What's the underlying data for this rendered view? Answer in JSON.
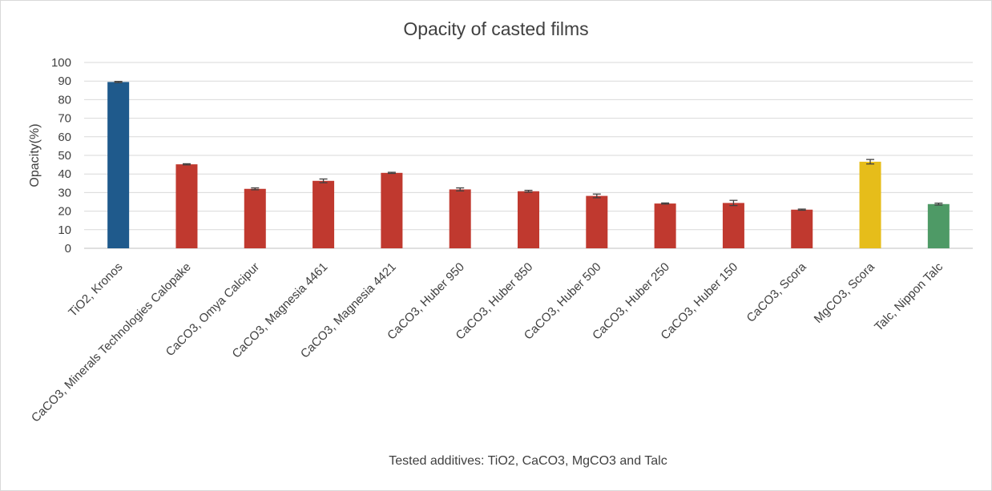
{
  "chart_data": {
    "type": "bar",
    "title": "Opacity of casted films",
    "xlabel": "Tested additives: TiO2, CaCO3, MgCO3 and Talc",
    "ylabel": "Opacity(%)",
    "ylim": [
      0,
      100
    ],
    "yticks": [
      0,
      10,
      20,
      30,
      40,
      50,
      60,
      70,
      80,
      90,
      100
    ],
    "grid": true,
    "categories": [
      "TiO2, Kronos",
      "CaCO3, Minerals Technologies Calopake",
      "CaCO3, Omya Calcipur",
      "CaCO3, Magnesia 4461",
      "CaCO3, Magnesia 4421",
      "CaCO3, Huber 950",
      "CaCO3, Huber 850",
      "CaCO3, Huber 500",
      "CaCO3, Huber 250",
      "CaCO3, Huber 150",
      "CaCO3, Scora",
      "MgCO3, Scora",
      "Talc, Nippon Talc"
    ],
    "values": [
      89.5,
      45.2,
      32.0,
      36.3,
      40.6,
      31.7,
      30.7,
      28.2,
      24.1,
      24.4,
      20.8,
      46.6,
      23.8
    ],
    "errors": [
      0.3,
      0.3,
      0.5,
      1.0,
      0.3,
      0.8,
      0.5,
      1.0,
      0.3,
      1.4,
      0.3,
      1.2,
      0.5
    ],
    "colors": [
      "#1f5a8c",
      "#c0392f",
      "#c0392f",
      "#c0392f",
      "#c0392f",
      "#c0392f",
      "#c0392f",
      "#c0392f",
      "#c0392f",
      "#c0392f",
      "#c0392f",
      "#e6bd1a",
      "#4e9a66"
    ],
    "gridline_color": "#d9d9d9",
    "errorbar_color": "#404040"
  }
}
